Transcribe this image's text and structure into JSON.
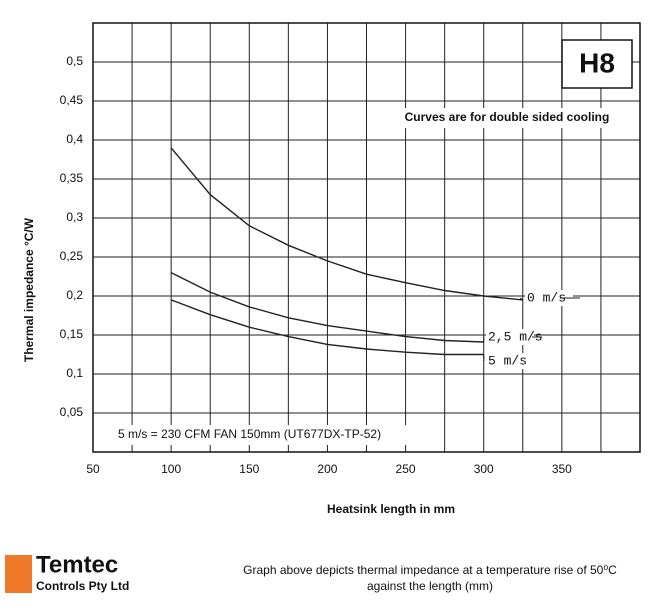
{
  "chart_data": {
    "type": "line",
    "title": "H8",
    "subtitle": "Curves are for double sided cooling",
    "annotation": "5 m/s = 230 CFM FAN 150mm (UT677DX-TP-52)",
    "x_label": "Heatsink length in mm",
    "y_label": "Thermal impedance °C/W",
    "x": [
      100,
      125,
      150,
      175,
      200,
      225,
      250,
      275,
      300,
      325
    ],
    "series": [
      {
        "name": "0 m/s",
        "color": "#222222",
        "values": [
          0.39,
          0.33,
          0.29,
          0.265,
          0.245,
          0.228,
          0.217,
          0.207,
          0.2,
          0.195
        ]
      },
      {
        "name": "2,5 m/s",
        "color": "#222222",
        "values": [
          0.23,
          0.205,
          0.186,
          0.172,
          0.162,
          0.155,
          0.148,
          0.143,
          0.141,
          null
        ]
      },
      {
        "name": "5 m/s",
        "color": "#222222",
        "values": [
          0.195,
          0.176,
          0.16,
          0.148,
          0.138,
          0.132,
          0.128,
          0.125,
          0.125,
          null
        ]
      }
    ],
    "xlim": [
      50,
      400
    ],
    "ylim": [
      0,
      0.55
    ],
    "xticks": [
      50,
      100,
      150,
      200,
      250,
      300,
      350
    ],
    "x_minor_ticks": [
      75,
      125,
      175,
      225,
      275,
      325,
      375
    ],
    "yticks": [
      {
        "value": 0.05,
        "label": "0,05"
      },
      {
        "value": 0.1,
        "label": "0,1"
      },
      {
        "value": 0.15,
        "label": "0,15"
      },
      {
        "value": 0.2,
        "label": "0,2"
      },
      {
        "value": 0.25,
        "label": "0,25"
      },
      {
        "value": 0.3,
        "label": "0,3"
      },
      {
        "value": 0.35,
        "label": "0,35"
      },
      {
        "value": 0.4,
        "label": "0,4"
      },
      {
        "value": 0.45,
        "label": "0,45"
      },
      {
        "value": 0.5,
        "label": "0,5"
      }
    ],
    "grid": true
  },
  "footer": {
    "company": "Temtec",
    "company_sub": "Controls Pty Ltd",
    "caption_line1": "Graph above depicts thermal impedance at a temperature rise of 50⁰C",
    "caption_line2": "against the length (mm)"
  }
}
